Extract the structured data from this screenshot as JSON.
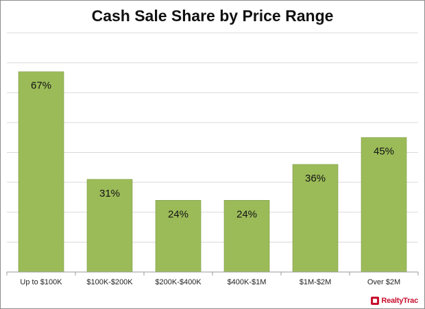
{
  "chart_data": {
    "type": "bar",
    "title": "Cash Sale Share by Price Range",
    "xlabel": "",
    "ylabel": "",
    "categories": [
      "Up to $100K",
      "$100K-$200K",
      "$200K-$400K",
      "$400K-$1M",
      "$1M-$2M",
      "Over $2M"
    ],
    "values": [
      67,
      31,
      24,
      24,
      36,
      45
    ],
    "data_labels": [
      "67%",
      "31%",
      "24%",
      "24%",
      "36%",
      "45%"
    ],
    "ylim": [
      0,
      80
    ],
    "grid": true,
    "legend": "none",
    "bar_color": "#9bbb59"
  },
  "branding": {
    "logo_text": "RealtyTrac"
  }
}
